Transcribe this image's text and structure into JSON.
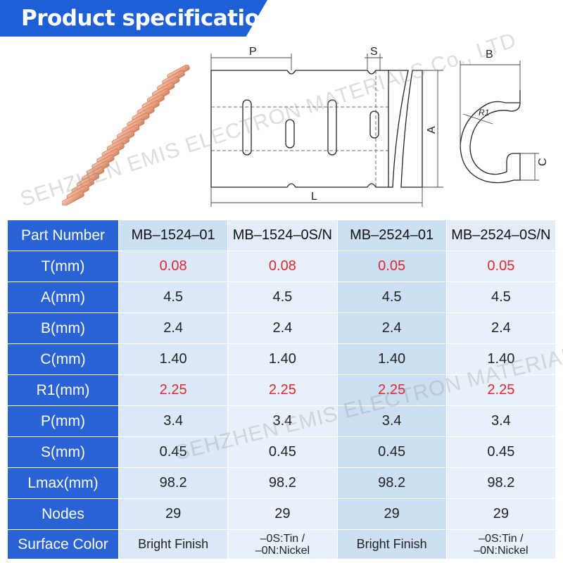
{
  "header": {
    "title": "Product specifications"
  },
  "watermark": {
    "text": "SEHZHEN EMIS ELECTRON MATERIALS Co., LTD"
  },
  "drawing": {
    "labels": {
      "p": "P",
      "s": "S",
      "b": "B",
      "a": "A",
      "l": "L",
      "c": "C",
      "r1": "R1"
    }
  },
  "colors": {
    "accent": "#1f5fd6",
    "highlight": "#e0262f",
    "copper": "#e9a383"
  },
  "table": {
    "columns": [
      "Part Number",
      "MB–1524–01",
      "MB–1524–0S/N",
      "MB–2524–01",
      "MB–2524–0S/N"
    ],
    "rows": [
      {
        "label": "T(mm)",
        "values": [
          "0.08",
          "0.08",
          "0.05",
          "0.05"
        ]
      },
      {
        "label": "A(mm)",
        "values": [
          "4.5",
          "4.5",
          "4.5",
          "4.5"
        ]
      },
      {
        "label": "B(mm)",
        "values": [
          "2.4",
          "2.4",
          "2.4",
          "2.4"
        ]
      },
      {
        "label": "C(mm)",
        "values": [
          "1.40",
          "1.40",
          "1.40",
          "1.40"
        ]
      },
      {
        "label": "R1(mm)",
        "values": [
          "2.25",
          "2.25",
          "2.25",
          "2.25"
        ]
      },
      {
        "label": "P(mm)",
        "values": [
          "3.4",
          "3.4",
          "3.4",
          "3.4"
        ]
      },
      {
        "label": "S(mm)",
        "values": [
          "0.45",
          "0.45",
          "0.45",
          "0.45"
        ]
      },
      {
        "label": "Lmax(mm)",
        "values": [
          "98.2",
          "98.2",
          "98.2",
          "98.2"
        ]
      },
      {
        "label": "Nodes",
        "values": [
          "29",
          "29",
          "29",
          "29"
        ]
      },
      {
        "label": "Surface Color",
        "values": [
          "Bright Finish",
          "–0S:Tin /",
          "Bright Finish",
          "–0S:Tin /"
        ],
        "values_line2": [
          "",
          "–0N:Nickel",
          "",
          "–0N:Nickel"
        ]
      }
    ]
  }
}
